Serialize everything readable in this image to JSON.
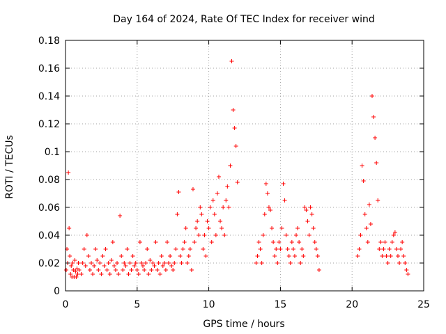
{
  "chart_data": {
    "type": "scatter",
    "title": "Day 164 of 2024, Rate Of TEC Index for receiver wind",
    "xlabel": "GPS time / hours",
    "ylabel": "ROTI / TECUs",
    "xlim": [
      0,
      25
    ],
    "ylim": [
      0,
      0.18
    ],
    "xticks": [
      0,
      5,
      10,
      15,
      20,
      25
    ],
    "yticks": [
      0,
      0.02,
      0.04,
      0.06,
      0.08,
      0.1,
      0.12,
      0.14,
      0.16,
      0.18
    ],
    "xtick_labels": [
      "0",
      "5",
      "10",
      "15",
      "20",
      "25"
    ],
    "ytick_labels": [
      "0",
      "0.02",
      "0.04",
      "0.06",
      "0.08",
      "0.1",
      "0.12",
      "0.14",
      "0.16",
      "0.18"
    ],
    "grid": true,
    "marker": "+",
    "color": "#ff0000",
    "series": [
      {
        "name": "ROTI",
        "x": [
          0.05,
          0.1,
          0.15,
          0.2,
          0.25,
          0.3,
          0.35,
          0.4,
          0.45,
          0.5,
          0.55,
          0.6,
          0.65,
          0.7,
          0.75,
          0.8,
          0.85,
          0.9,
          0.95,
          1.1,
          1.2,
          1.3,
          1.4,
          1.5,
          1.6,
          1.7,
          1.8,
          1.9,
          2.0,
          2.1,
          2.2,
          2.3,
          2.4,
          2.5,
          2.6,
          2.7,
          2.8,
          2.9,
          3.0,
          3.1,
          3.2,
          3.3,
          3.4,
          3.5,
          3.6,
          3.7,
          3.8,
          3.9,
          4.0,
          4.1,
          4.2,
          4.3,
          4.4,
          4.5,
          4.6,
          4.7,
          4.8,
          4.9,
          5.0,
          5.1,
          5.2,
          5.3,
          5.4,
          5.5,
          5.6,
          5.7,
          5.8,
          5.9,
          6.0,
          6.1,
          6.2,
          6.3,
          6.4,
          6.5,
          6.6,
          6.7,
          6.8,
          6.9,
          7.0,
          7.1,
          7.2,
          7.3,
          7.4,
          7.5,
          7.6,
          7.7,
          7.8,
          7.9,
          8.0,
          8.1,
          8.2,
          8.3,
          8.4,
          8.5,
          8.6,
          8.7,
          8.8,
          8.9,
          9.0,
          9.1,
          9.2,
          9.3,
          9.4,
          9.5,
          9.6,
          9.7,
          9.8,
          9.9,
          10.0,
          10.1,
          10.2,
          10.3,
          10.4,
          10.5,
          10.6,
          10.7,
          10.8,
          10.9,
          11.0,
          11.1,
          11.2,
          11.3,
          11.4,
          11.5,
          11.6,
          11.7,
          11.8,
          11.9,
          12.0,
          13.3,
          13.4,
          13.5,
          13.6,
          13.7,
          13.8,
          13.9,
          14.0,
          14.1,
          14.2,
          14.3,
          14.4,
          14.5,
          14.6,
          14.7,
          14.8,
          14.9,
          15.0,
          15.1,
          15.2,
          15.3,
          15.4,
          15.5,
          15.6,
          15.7,
          15.8,
          15.9,
          16.0,
          16.1,
          16.2,
          16.3,
          16.4,
          16.5,
          16.6,
          16.7,
          16.8,
          16.9,
          17.0,
          17.1,
          17.2,
          17.3,
          17.4,
          17.5,
          17.6,
          17.7,
          20.4,
          20.5,
          20.6,
          20.7,
          20.8,
          20.9,
          21.0,
          21.1,
          21.2,
          21.3,
          21.4,
          21.5,
          21.6,
          21.7,
          21.8,
          21.9,
          22.0,
          22.1,
          22.2,
          22.3,
          22.4,
          22.5,
          22.6,
          22.7,
          22.8,
          22.9,
          23.0,
          23.1,
          23.2,
          23.3,
          23.4,
          23.5,
          23.6,
          23.7,
          23.8,
          23.9
        ],
        "y": [
          0.015,
          0.03,
          0.02,
          0.085,
          0.045,
          0.025,
          0.012,
          0.018,
          0.01,
          0.02,
          0.015,
          0.01,
          0.022,
          0.014,
          0.01,
          0.016,
          0.012,
          0.02,
          0.015,
          0.012,
          0.02,
          0.03,
          0.018,
          0.04,
          0.025,
          0.015,
          0.02,
          0.012,
          0.018,
          0.03,
          0.022,
          0.015,
          0.02,
          0.012,
          0.025,
          0.018,
          0.03,
          0.015,
          0.02,
          0.012,
          0.022,
          0.035,
          0.018,
          0.015,
          0.02,
          0.012,
          0.054,
          0.025,
          0.015,
          0.02,
          0.018,
          0.03,
          0.012,
          0.02,
          0.015,
          0.025,
          0.018,
          0.02,
          0.015,
          0.012,
          0.035,
          0.02,
          0.018,
          0.015,
          0.02,
          0.03,
          0.012,
          0.022,
          0.015,
          0.02,
          0.018,
          0.035,
          0.015,
          0.02,
          0.012,
          0.025,
          0.018,
          0.02,
          0.015,
          0.035,
          0.02,
          0.025,
          0.018,
          0.015,
          0.02,
          0.03,
          0.055,
          0.071,
          0.025,
          0.02,
          0.03,
          0.035,
          0.045,
          0.02,
          0.025,
          0.03,
          0.015,
          0.073,
          0.035,
          0.045,
          0.05,
          0.04,
          0.06,
          0.055,
          0.03,
          0.04,
          0.025,
          0.05,
          0.045,
          0.06,
          0.035,
          0.065,
          0.055,
          0.04,
          0.07,
          0.082,
          0.05,
          0.045,
          0.06,
          0.04,
          0.065,
          0.075,
          0.06,
          0.09,
          0.165,
          0.13,
          0.117,
          0.104,
          0.078,
          0.02,
          0.025,
          0.035,
          0.03,
          0.02,
          0.04,
          0.055,
          0.077,
          0.07,
          0.06,
          0.058,
          0.045,
          0.035,
          0.025,
          0.03,
          0.02,
          0.035,
          0.03,
          0.045,
          0.077,
          0.065,
          0.04,
          0.03,
          0.025,
          0.02,
          0.035,
          0.03,
          0.025,
          0.04,
          0.045,
          0.035,
          0.02,
          0.03,
          0.025,
          0.06,
          0.058,
          0.05,
          0.04,
          0.06,
          0.055,
          0.045,
          0.035,
          0.03,
          0.025,
          0.015,
          0.025,
          0.03,
          0.04,
          0.09,
          0.079,
          0.055,
          0.045,
          0.035,
          0.062,
          0.048,
          0.14,
          0.125,
          0.11,
          0.092,
          0.065,
          0.03,
          0.035,
          0.025,
          0.03,
          0.035,
          0.025,
          0.02,
          0.03,
          0.025,
          0.035,
          0.04,
          0.042,
          0.03,
          0.025,
          0.02,
          0.03,
          0.035,
          0.025,
          0.02,
          0.015,
          0.012
        ]
      }
    ]
  }
}
